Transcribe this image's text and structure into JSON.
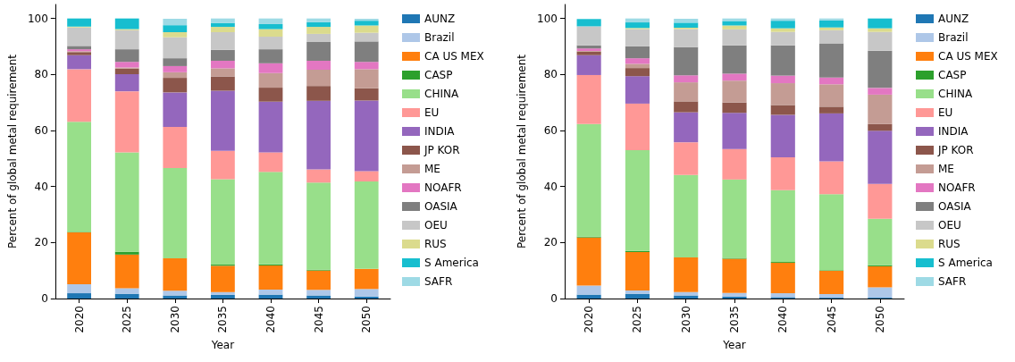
{
  "chart_data": [
    {
      "type": "bar",
      "stacked": true,
      "xlabel": "Year",
      "ylabel": "Percent of global metal requirement",
      "categories": [
        "2020",
        "2025",
        "2030",
        "2035",
        "2040",
        "2045",
        "2050"
      ],
      "ylim": [
        0,
        105
      ],
      "yticks": [
        0,
        20,
        40,
        60,
        80,
        100
      ],
      "grid": false,
      "legend": "right",
      "series": [
        {
          "name": "AUNZ",
          "color": "#1f77b4",
          "values": [
            1.9,
            1.7,
            1.1,
            1.3,
            1.4,
            1.1,
            0.7
          ]
        },
        {
          "name": "Brazil",
          "color": "#aec7e8",
          "values": [
            3.2,
            2.0,
            1.7,
            1.0,
            1.8,
            2.0,
            2.7
          ]
        },
        {
          "name": "CA US MEX",
          "color": "#ff7f0e",
          "values": [
            18.5,
            12.0,
            11.6,
            9.4,
            8.6,
            6.9,
            7.2
          ]
        },
        {
          "name": "CASP",
          "color": "#2ca02c",
          "values": [
            0.2,
            1.0,
            null,
            0.4,
            0.4,
            0.3,
            null
          ]
        },
        {
          "name": "CHINA",
          "color": "#98df8a",
          "values": [
            39.3,
            35.5,
            32.2,
            30.5,
            33.0,
            31.1,
            31.2
          ]
        },
        {
          "name": "EU",
          "color": "#ff9896",
          "values": [
            18.8,
            21.8,
            14.7,
            10.1,
            7.0,
            4.7,
            3.7
          ]
        },
        {
          "name": "INDIA",
          "color": "#9467bd",
          "values": [
            5.0,
            6.1,
            12.3,
            21.5,
            18.1,
            24.5,
            25.2
          ]
        },
        {
          "name": "JP KOR",
          "color": "#8c564b",
          "values": [
            1.1,
            2.0,
            5.2,
            5.1,
            5.0,
            5.3,
            4.4
          ]
        },
        {
          "name": "ME",
          "color": "#c49c94",
          "values": [
            0.3,
            0.4,
            2.0,
            2.9,
            5.2,
            5.8,
            6.8
          ]
        },
        {
          "name": "NOAFR",
          "color": "#e377c2",
          "values": [
            0.7,
            2.0,
            2.2,
            2.7,
            3.5,
            3.2,
            2.6
          ]
        },
        {
          "name": "OASIA",
          "color": "#7f7f7f",
          "values": [
            1.2,
            4.5,
            2.8,
            3.9,
            5.0,
            6.7,
            7.3
          ]
        },
        {
          "name": "OEU",
          "color": "#c7c7c7",
          "values": [
            6.6,
            6.8,
            7.5,
            6.3,
            4.5,
            2.9,
            3.1
          ]
        },
        {
          "name": "RUS",
          "color": "#dbdb8d",
          "values": [
            0.3,
            0.4,
            1.8,
            1.9,
            2.7,
            2.5,
            2.6
          ]
        },
        {
          "name": "S America",
          "color": "#17becf",
          "values": [
            2.9,
            3.8,
            2.5,
            1.4,
            1.8,
            1.7,
            1.7
          ]
        },
        {
          "name": "SAFR",
          "color": "#9edae5",
          "values": [
            0,
            0,
            2.3,
            1.6,
            2.0,
            1.3,
            0.7
          ]
        }
      ]
    },
    {
      "type": "bar",
      "stacked": true,
      "xlabel": "Year",
      "ylabel": "Percent of global metal requirement",
      "categories": [
        "2020",
        "2025",
        "2030",
        "2035",
        "2040",
        "2045",
        "2050"
      ],
      "ylim": [
        0,
        105
      ],
      "yticks": [
        0,
        20,
        40,
        60,
        80,
        100
      ],
      "grid": false,
      "legend": "right",
      "series": [
        {
          "name": "AUNZ",
          "color": "#1f77b4",
          "values": [
            1.4,
            1.7,
            1.1,
            0.7,
            0.5,
            0.3,
            0.3
          ]
        },
        {
          "name": "Brazil",
          "color": "#aec7e8",
          "values": [
            3.2,
            1.2,
            1.2,
            1.3,
            1.4,
            1.3,
            3.7
          ]
        },
        {
          "name": "CA US MEX",
          "color": "#ff7f0e",
          "values": [
            17.2,
            13.7,
            12.4,
            12.2,
            10.9,
            8.3,
            7.5
          ]
        },
        {
          "name": "CASP",
          "color": "#2ca02c",
          "values": [
            0.3,
            0.4,
            null,
            0.3,
            0.3,
            0.2,
            0.4
          ]
        },
        {
          "name": "CHINA",
          "color": "#98df8a",
          "values": [
            40.2,
            36.0,
            29.4,
            28.0,
            25.6,
            27.2,
            16.6
          ]
        },
        {
          "name": "EU",
          "color": "#ff9896",
          "values": [
            17.5,
            16.6,
            11.7,
            10.9,
            11.7,
            11.7,
            12.4
          ]
        },
        {
          "name": "INDIA",
          "color": "#9467bd",
          "values": [
            7.1,
            9.8,
            10.7,
            12.9,
            15.2,
            17.1,
            19.0
          ]
        },
        {
          "name": "JP KOR",
          "color": "#8c564b",
          "values": [
            1.3,
            2.9,
            3.9,
            3.7,
            3.5,
            2.4,
            2.4
          ]
        },
        {
          "name": "ME",
          "color": "#c49c94",
          "values": [
            0.2,
            1.5,
            6.8,
            7.8,
            7.8,
            8.0,
            10.5
          ]
        },
        {
          "name": "NOAFR",
          "color": "#e377c2",
          "values": [
            0.9,
            2.0,
            2.5,
            2.5,
            2.7,
            2.4,
            2.4
          ]
        },
        {
          "name": "OASIA",
          "color": "#7f7f7f",
          "values": [
            1.1,
            4.3,
            10.1,
            10.1,
            10.8,
            12.2,
            13.3
          ]
        },
        {
          "name": "OEU",
          "color": "#c7c7c7",
          "values": [
            6.8,
            6.1,
            6.4,
            5.7,
            4.8,
            4.7,
            6.7
          ]
        },
        {
          "name": "RUS",
          "color": "#dbdb8d",
          "values": [
            null,
            0.4,
            0.5,
            1.4,
            1.3,
            1.0,
            1.3
          ]
        },
        {
          "name": "S America",
          "color": "#17becf",
          "values": [
            2.6,
            2.0,
            1.8,
            1.6,
            2.7,
            2.5,
            3.5
          ]
        },
        {
          "name": "SAFR",
          "color": "#9edae5",
          "values": [
            0,
            1.4,
            1.4,
            0.9,
            0.8,
            0.7,
            0
          ]
        }
      ]
    }
  ]
}
